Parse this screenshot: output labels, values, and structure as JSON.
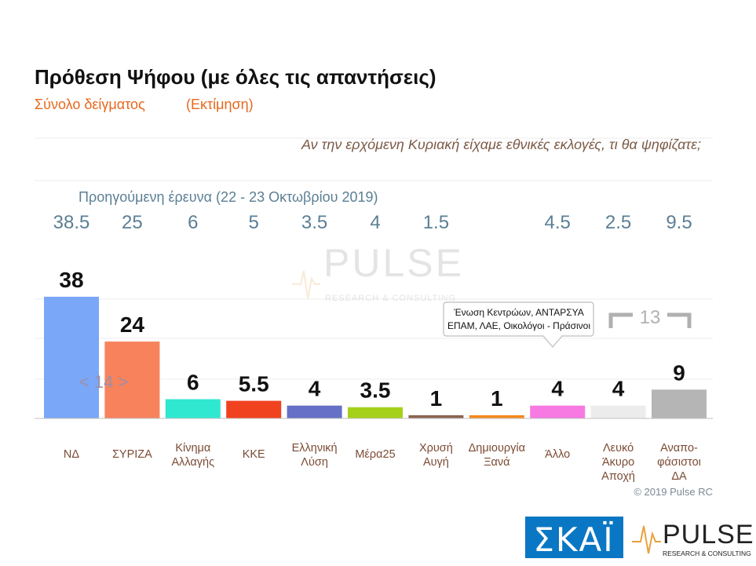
{
  "header": {
    "title": "Πρόθεση Ψήφου (με όλες τις απαντήσεις)",
    "subtitle_left": "Σύνολο δείγματος",
    "subtitle_right": "(Εκτίμηση)",
    "question": "Αν την ερχόμενη Κυριακή είχαμε εθνικές εκλογές, τι θα ψηφίζατε;"
  },
  "previous_survey": {
    "label": "Προηγούμενη έρευνα  (22 - 23  Οκτωβρίου  2019)"
  },
  "watermark": {
    "brand": "PULSE",
    "tagline": "RESEARCH & CONSULTING"
  },
  "annotations": {
    "callout_line1": "Ένωση Κεντρώων, ΑΝΤΑΡΣΥΑ",
    "callout_line2": "ΕΠΑΜ, ΛΑΕ, Οικολόγοι - Πράσινοι",
    "bracket_14": "< 14 >",
    "bracket_13": "13"
  },
  "footer": {
    "copyright": "© 2019 Pulse RC",
    "skai_logo": "ΣΚΑΪ",
    "pulse_logo": "PULSE",
    "pulse_tagline": "RESEARCH & CONSULTING"
  },
  "chart_data": {
    "type": "bar",
    "title": "Πρόθεση Ψήφου (με όλες τις απαντήσεις)",
    "categories": [
      [
        "ΝΔ"
      ],
      [
        "ΣΥΡΙΖΑ"
      ],
      [
        "Κίνημα",
        "Αλλαγής"
      ],
      [
        "ΚΚΕ"
      ],
      [
        "Ελληνική",
        "Λύση"
      ],
      [
        "Μέρα25"
      ],
      [
        "Χρυσή",
        "Αυγή"
      ],
      [
        "Δημιουργία",
        "Ξανά"
      ],
      [
        "Άλλο"
      ],
      [
        "Λευκό",
        "Άκυρο",
        "Αποχή"
      ],
      [
        "Αναπο-",
        "φάσιστοι",
        "ΔΑ"
      ]
    ],
    "values": [
      38,
      24,
      6,
      5.5,
      4,
      3.5,
      1,
      1,
      4,
      4,
      9
    ],
    "value_labels": [
      "38",
      "24",
      "6",
      "5.5",
      "4",
      "3.5",
      "1",
      "1",
      "4",
      "4",
      "9"
    ],
    "previous_values": [
      "38.5",
      "25",
      "6",
      "5",
      "3.5",
      "4",
      "1.5",
      "",
      "4.5",
      "2.5",
      "9.5"
    ],
    "colors": [
      "#7aa7f7",
      "#f7825c",
      "#2fe8cf",
      "#f0421f",
      "#6670c6",
      "#a5d11a",
      "#8c6452",
      "#f58a1f",
      "#f67ae1",
      "#ececec",
      "#b5b5b5"
    ],
    "ylim": [
      0,
      40
    ],
    "grid": true,
    "xlabel": "",
    "ylabel": ""
  }
}
